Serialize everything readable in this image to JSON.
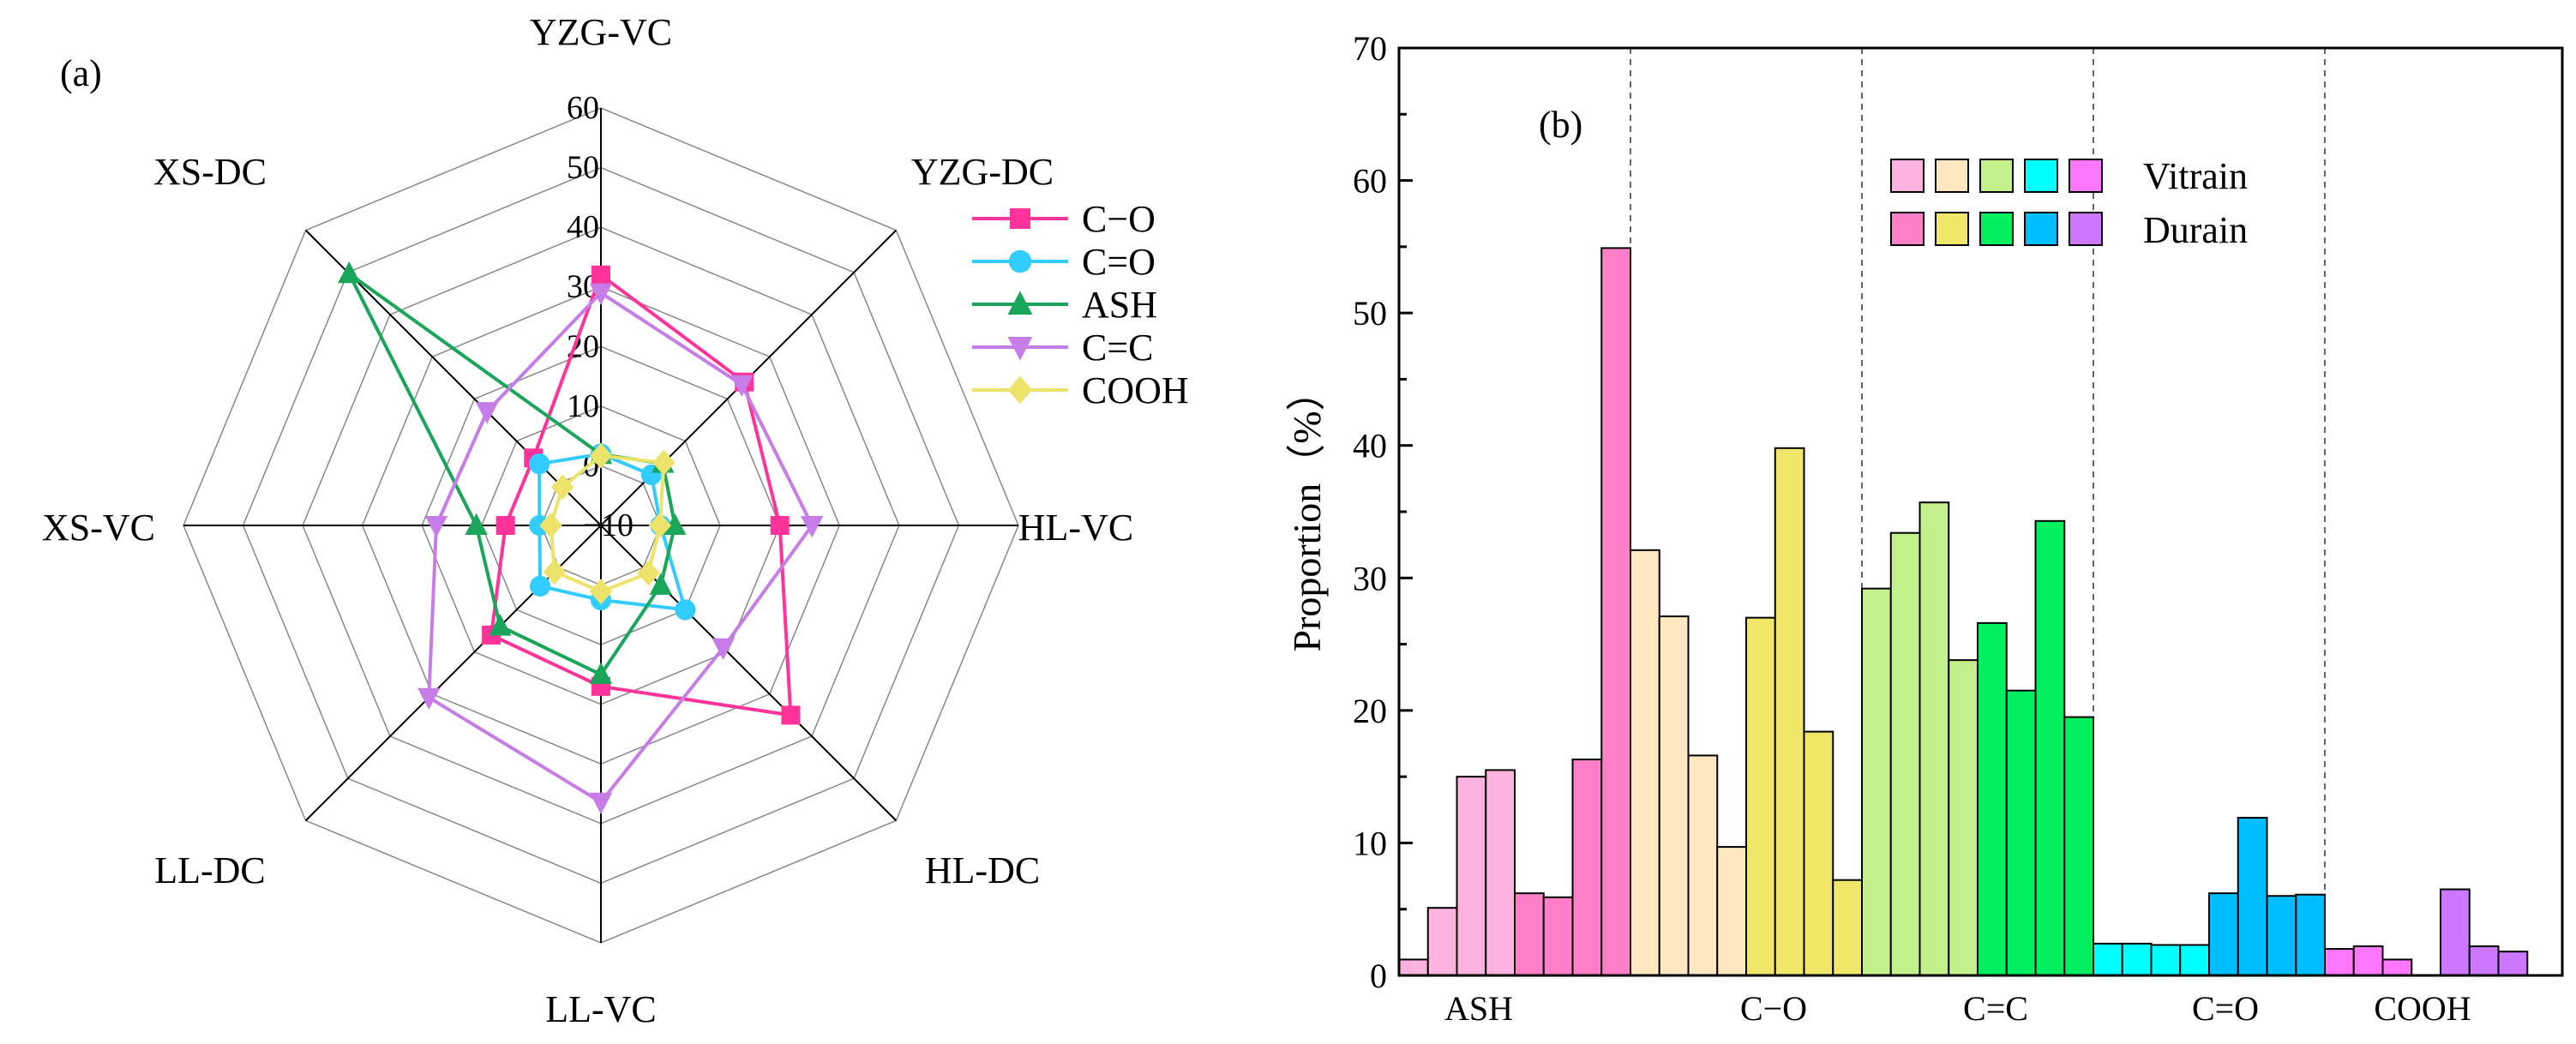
{
  "chart_data": [
    {
      "type": "radar",
      "panel_label": "(a)",
      "axes": [
        "YZG-VC",
        "YZG-DC",
        "HL-VC",
        "HL-DC",
        "LL-VC",
        "LL-DC",
        "XS-VC",
        "XS-DC"
      ],
      "rlim": [
        -10,
        60
      ],
      "ticks": [
        "-10",
        "0",
        "10",
        "20",
        "30",
        "40",
        "50",
        "60"
      ],
      "legend_placement": "right",
      "series": [
        {
          "name": "C−O",
          "color": "#FF3399",
          "marker": "square",
          "values": [
            32,
            24,
            20,
            35,
            17,
            16,
            6,
            6
          ]
        },
        {
          "name": "C=O",
          "color": "#33CCFF",
          "marker": "circle",
          "values": [
            2,
            2,
            0,
            10,
            2.5,
            4.4,
            0.3,
            4.6
          ]
        },
        {
          "name": "ASH",
          "color": "#1AA65A",
          "marker": "triangle-up",
          "values": [
            1.9,
            4.7,
            2.4,
            4.2,
            15,
            13.9,
            10.9,
            49.7
          ]
        },
        {
          "name": "C=C",
          "color": "#C77DE8",
          "marker": "triangle-down",
          "values": [
            29,
            23.4,
            25.4,
            19,
            36.4,
            30.8,
            17.6,
            17
          ]
        },
        {
          "name": "COOH",
          "color": "#EEE36A",
          "marker": "diamond",
          "values": [
            1.7,
            4.9,
            -0.1,
            1.3,
            1.1,
            1,
            -1.6,
            -0.9
          ]
        }
      ]
    },
    {
      "type": "bar",
      "panel_label": "(b)",
      "ylabel": "Proportion（%）",
      "ylim": [
        0,
        70
      ],
      "yticks": [
        "0",
        "10",
        "20",
        "30",
        "40",
        "50",
        "60",
        "70"
      ],
      "categories": [
        "ASH",
        "C−O",
        "C=C",
        "C=O",
        "COOH"
      ],
      "legend": {
        "placement": "top-right",
        "labels": [
          "Vitrain",
          "Durain"
        ]
      },
      "groups": [
        {
          "name": "ASH",
          "vitrain_color": "#FFB3DE",
          "durain_color": "#FF80C8",
          "vitrain": [
            1.2,
            5.1,
            15,
            15.5
          ],
          "durain": [
            6.2,
            5.9,
            16.3,
            54.9
          ]
        },
        {
          "name": "C−O",
          "vitrain_color": "#FFE8C0",
          "durain_color": "#F0E66A",
          "vitrain": [
            32.1,
            27.1,
            16.6,
            9.7
          ],
          "durain": [
            27,
            39.8,
            18.4,
            7.2
          ]
        },
        {
          "name": "C=C",
          "vitrain_color": "#C4F08C",
          "durain_color": "#00F060",
          "vitrain": [
            29.2,
            33.4,
            35.7,
            23.8
          ],
          "durain": [
            26.6,
            21.5,
            34.3,
            19.5
          ]
        },
        {
          "name": "C=O",
          "vitrain_color": "#00FFFF",
          "durain_color": "#00BFFF",
          "vitrain": [
            2.4,
            2.4,
            2.3,
            2.3
          ],
          "durain": [
            6.2,
            11.9,
            6.0,
            6.1
          ]
        },
        {
          "name": "COOH",
          "vitrain_color": "#FF77FF",
          "durain_color": "#CC77FF",
          "vitrain": [
            2.0,
            2.2,
            1.2,
            0
          ],
          "durain": [
            6.5,
            2.2,
            1.8,
            0
          ]
        }
      ]
    }
  ]
}
